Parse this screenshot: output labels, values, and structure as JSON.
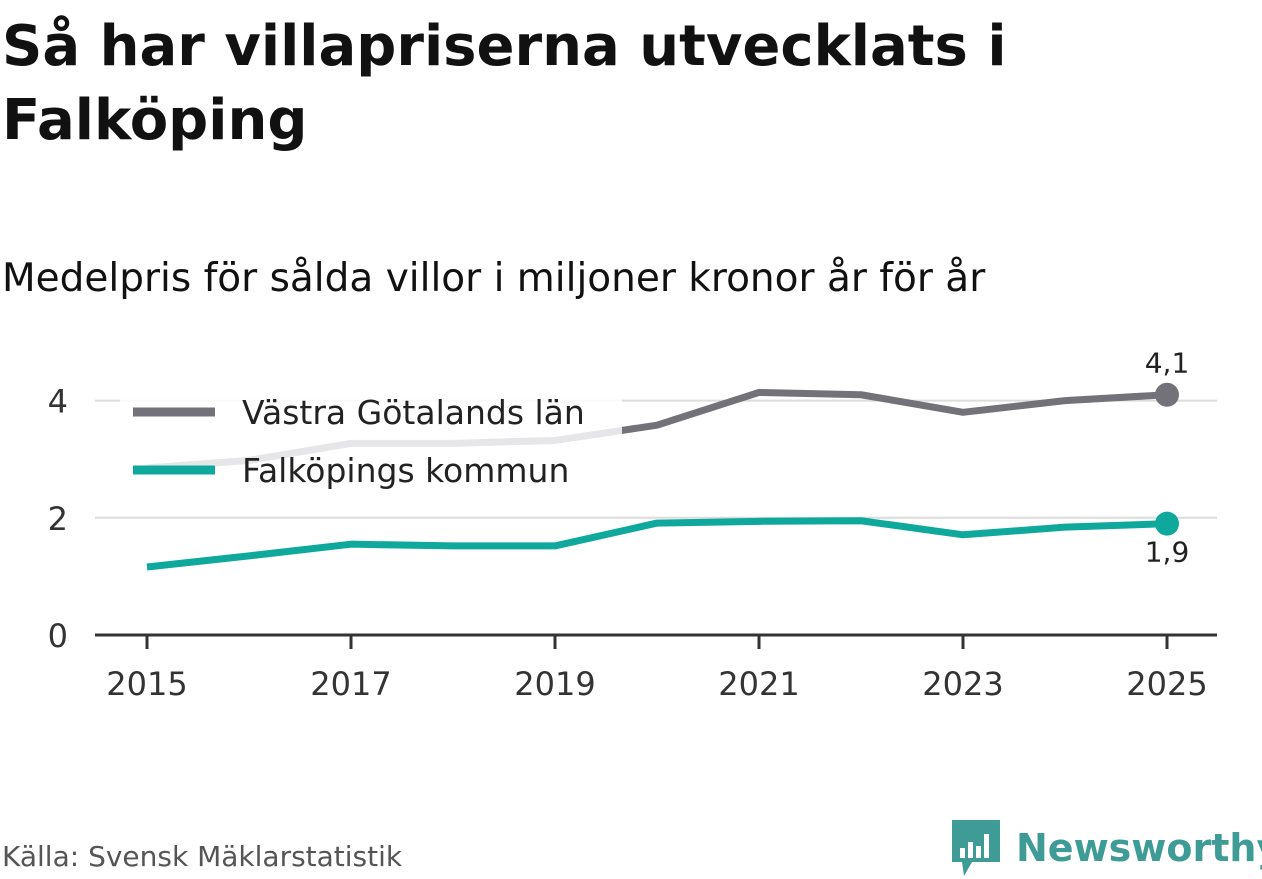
{
  "title": "Så har villapriserna utvecklats i Falköping",
  "subtitle": "Medelpris för sålda villor i miljoner kronor år för år",
  "source": "Källa: Svensk Mäklarstatistik",
  "brand": {
    "name": "Newsworthy",
    "icon": "newsworthy-logo-icon",
    "color": "#3f9b96"
  },
  "chart_data": {
    "type": "line",
    "title": "Så har villapriserna utvecklats i Falköping",
    "subtitle": "Medelpris för sålda villor i miljoner kronor år för år",
    "xlabel": "",
    "ylabel": "",
    "x": [
      2015,
      2016,
      2017,
      2018,
      2019,
      2020,
      2021,
      2022,
      2023,
      2024,
      2025
    ],
    "xticks": [
      "2015",
      "2017",
      "2019",
      "2021",
      "2023",
      "2025"
    ],
    "yticks": [
      "0",
      "2",
      "4"
    ],
    "ylim": [
      0,
      4.4
    ],
    "grid": true,
    "legend_position": "top-left",
    "series": [
      {
        "name": "Västra Götalands län",
        "color": "#737278",
        "values": [
          2.85,
          2.98,
          3.27,
          3.27,
          3.32,
          3.58,
          4.14,
          4.1,
          3.8,
          4.0,
          4.1
        ],
        "end_label": "4,1"
      },
      {
        "name": "Falköpings kommun",
        "color": "#0fa89c",
        "values": [
          1.16,
          1.35,
          1.55,
          1.52,
          1.52,
          1.91,
          1.94,
          1.95,
          1.71,
          1.84,
          1.9
        ],
        "end_label": "1,9"
      }
    ]
  }
}
